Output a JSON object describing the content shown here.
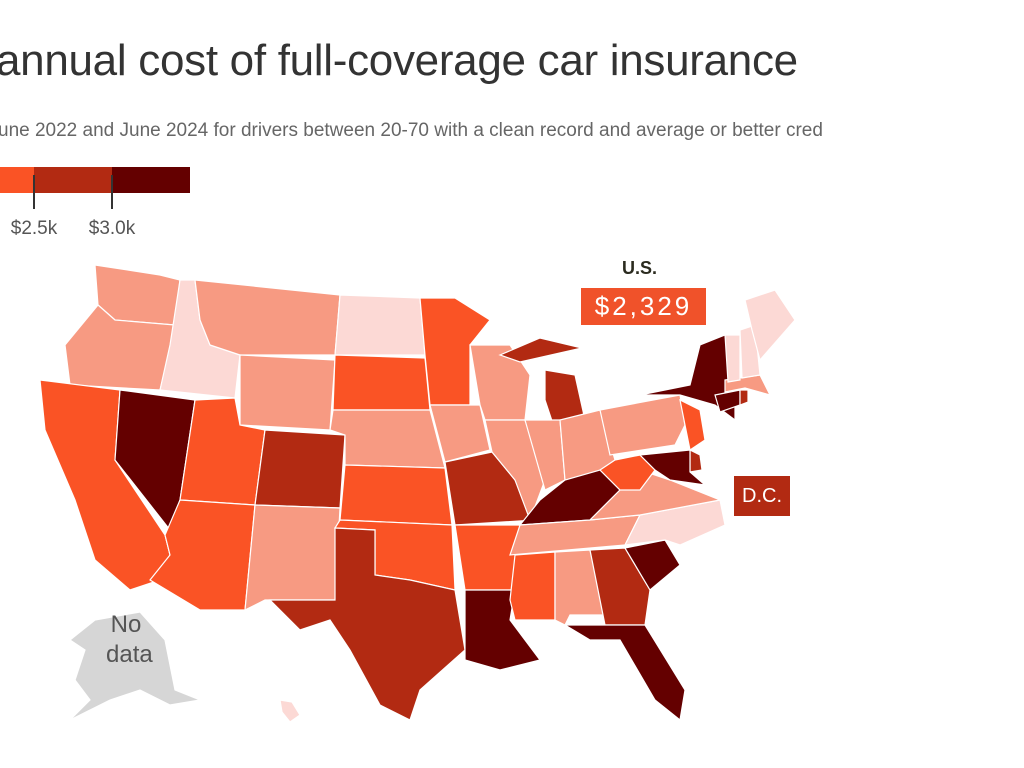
{
  "title": "annual cost of full-coverage car insurance",
  "subtitle": "une 2022 and June 2024 for drivers between 20-70 with a clean record and average or better cred",
  "legend": {
    "bins": [
      {
        "color": "#fa5325"
      },
      {
        "color": "#b22a12"
      },
      {
        "color": "#640000"
      }
    ],
    "tick_labels": [
      "$2.5k",
      "$3.0k"
    ]
  },
  "colors": {
    "1": "#fcd9d5",
    "2": "#f79a82",
    "3": "#fa5325",
    "4": "#b22a12",
    "5": "#640000",
    "nodata": "#d6d6d6"
  },
  "us_average": {
    "label": "U.S.",
    "value": "$2,329"
  },
  "dc": {
    "label": "D.C.",
    "bin": 4
  },
  "no_data_label": [
    "No",
    "data"
  ],
  "states": {
    "WA": 2,
    "OR": 2,
    "CA": 3,
    "NV": 5,
    "ID": 1,
    "MT": 2,
    "WY": 2,
    "UT": 3,
    "AZ": 3,
    "CO": 4,
    "NM": 2,
    "ND": 1,
    "SD": 3,
    "NE": 2,
    "KS": 3,
    "OK": 3,
    "TX": 4,
    "MN": 3,
    "IA": 2,
    "MO": 4,
    "AR": 3,
    "LA": 5,
    "WI": 2,
    "IL": 2,
    "MI": 4,
    "IN": 2,
    "OH": 2,
    "KY": 5,
    "TN": 2,
    "MS": 3,
    "AL": 2,
    "GA": 4,
    "FL": 5,
    "SC": 5,
    "NC": 1,
    "VA": 2,
    "WV": 3,
    "PA": 2,
    "NY": 5,
    "NJ": 3,
    "DE": 4,
    "MD": 5,
    "CT": 5,
    "RI": 4,
    "MA": 2,
    "VT": 1,
    "NH": 1,
    "ME": 1,
    "AK": "nodata",
    "HI": 1
  }
}
